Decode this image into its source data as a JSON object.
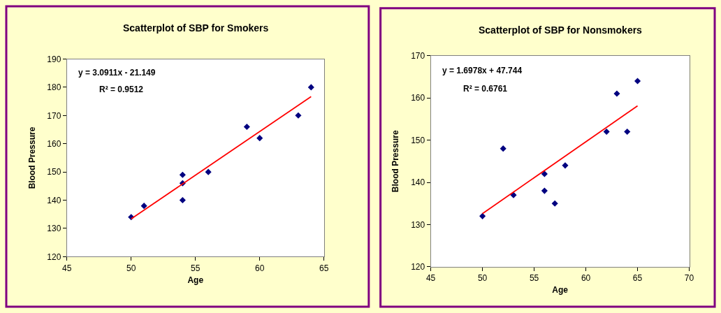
{
  "chart_data": [
    {
      "type": "scatter",
      "title": "Scatterplot of SBP for Smokers",
      "xlabel": "Age",
      "ylabel": "Blood Pressure",
      "xlim": [
        45,
        65
      ],
      "xticks": [
        45,
        50,
        55,
        60,
        65
      ],
      "ylim": [
        120,
        190
      ],
      "yticks": [
        120,
        130,
        140,
        150,
        160,
        170,
        180,
        190
      ],
      "grid": false,
      "marker": "diamond",
      "annotations": [
        "y = 3.0911x - 21.149",
        "R² = 0.9512"
      ],
      "series": [
        {
          "color": "#000080",
          "x": [
            50,
            51,
            54,
            54,
            54,
            56,
            59,
            60,
            63,
            64
          ],
          "values": [
            134,
            138,
            149,
            146,
            140,
            150,
            166,
            162,
            170,
            180
          ]
        },
        {
          "type": "line",
          "marker": "none",
          "color": "#ff0000",
          "x": [
            50,
            64
          ],
          "values": [
            133.4,
            176.7
          ]
        }
      ]
    },
    {
      "type": "scatter",
      "title": "Scatterplot of SBP for Nonsmokers",
      "xlabel": "Age",
      "ylabel": "Blood Pressure",
      "xlim": [
        45,
        70
      ],
      "xticks": [
        45,
        50,
        55,
        60,
        65,
        70
      ],
      "ylim": [
        120,
        170
      ],
      "yticks": [
        120,
        130,
        140,
        150,
        160,
        170
      ],
      "grid": false,
      "marker": "diamond",
      "annotations": [
        "y = 1.6978x + 47.744",
        "R² = 0.6761"
      ],
      "series": [
        {
          "color": "#000080",
          "x": [
            50,
            52,
            53,
            56,
            56,
            57,
            58,
            62,
            63,
            64,
            65
          ],
          "values": [
            132,
            148,
            137,
            142,
            138,
            135,
            144,
            152,
            161,
            152,
            164
          ]
        },
        {
          "type": "line",
          "marker": "none",
          "color": "#ff0000",
          "x": [
            50,
            65
          ],
          "values": [
            132.6,
            158.1
          ]
        }
      ]
    }
  ]
}
